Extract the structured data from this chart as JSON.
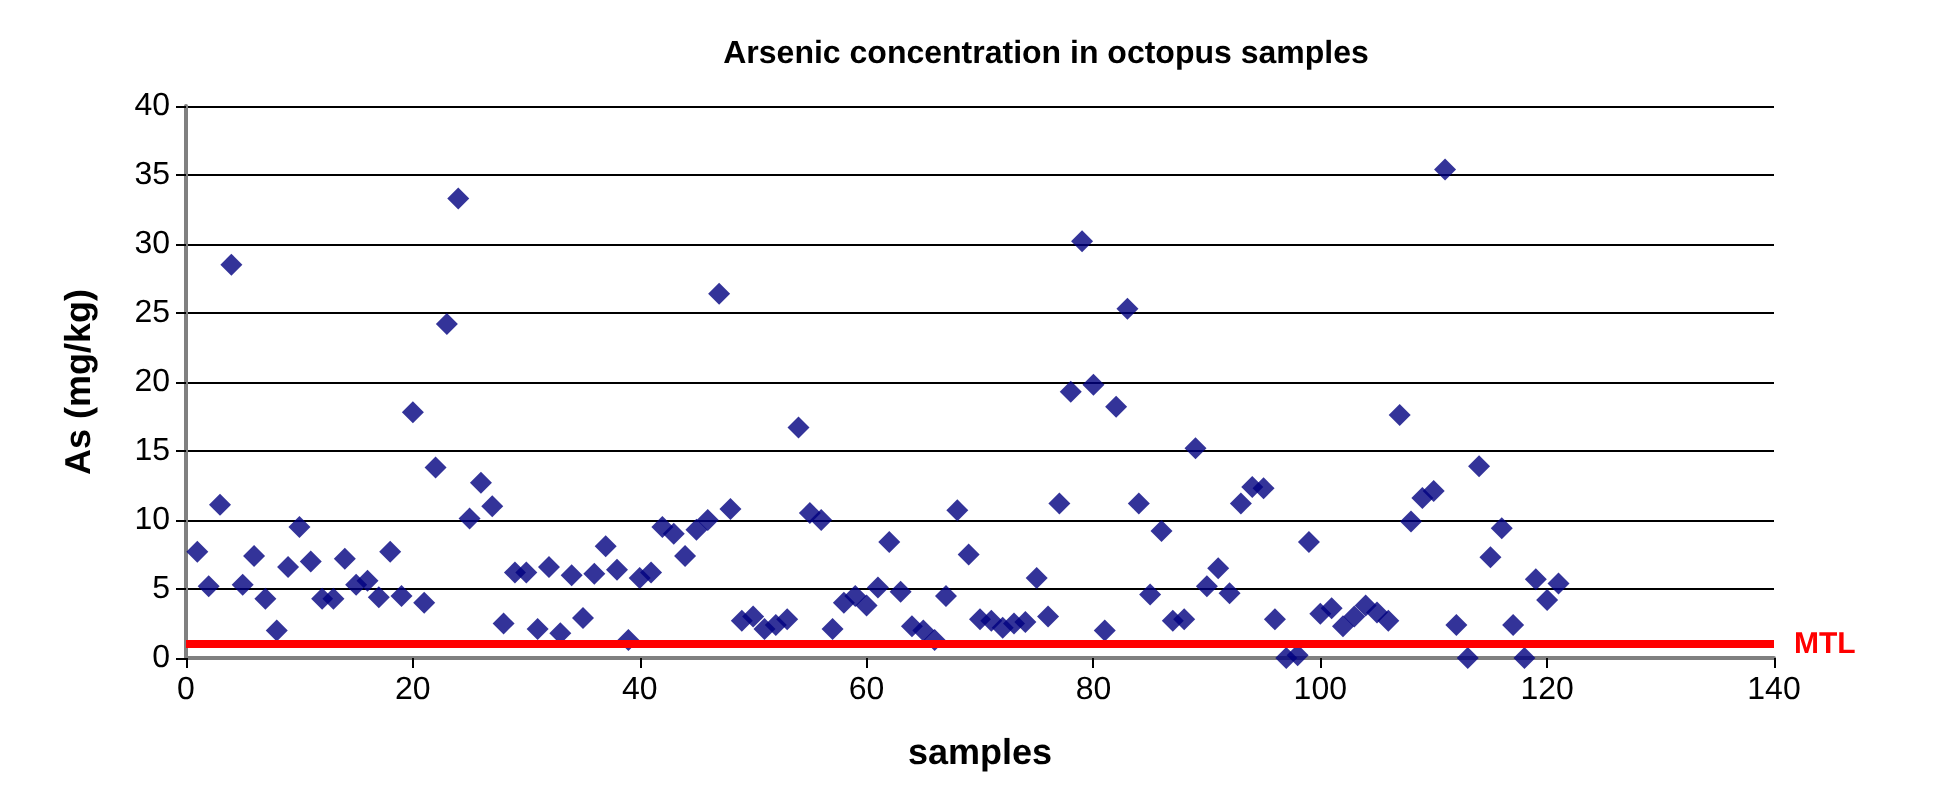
{
  "chart_data": {
    "type": "scatter",
    "title": "Arsenic concentration in octopus samples",
    "xlabel": "samples",
    "ylabel": "As (mg/kg)",
    "x": [
      1,
      2,
      3,
      4,
      5,
      6,
      7,
      8,
      9,
      10,
      11,
      12,
      13,
      14,
      15,
      16,
      17,
      18,
      19,
      20,
      21,
      22,
      23,
      24,
      25,
      26,
      27,
      28,
      29,
      30,
      31,
      32,
      33,
      34,
      35,
      36,
      37,
      38,
      39,
      40,
      41,
      42,
      43,
      44,
      45,
      46,
      47,
      48,
      49,
      50,
      51,
      52,
      53,
      54,
      55,
      56,
      57,
      58,
      59,
      60,
      61,
      62,
      63,
      64,
      65,
      66,
      67,
      68,
      69,
      70,
      71,
      72,
      73,
      74,
      75,
      76,
      77,
      78,
      79,
      80,
      81,
      82,
      83,
      84,
      85,
      86,
      87,
      88,
      89,
      90,
      91,
      92,
      93,
      94,
      95,
      96,
      97,
      98,
      99,
      100,
      101,
      102,
      103,
      104,
      105,
      106,
      107,
      108,
      109,
      110,
      111,
      112,
      113,
      114,
      115,
      116,
      117,
      118,
      119,
      120,
      121
    ],
    "series": [
      {
        "color": "#000080",
        "values": [
          7.7,
          5.2,
          11.1,
          28.5,
          5.3,
          7.4,
          4.3,
          2.0,
          6.6,
          9.5,
          7.0,
          4.3,
          4.3,
          7.2,
          5.3,
          5.6,
          4.4,
          7.7,
          4.5,
          17.8,
          4.0,
          13.8,
          24.2,
          33.3,
          10.1,
          12.7,
          11.0,
          2.5,
          6.2,
          6.2,
          2.1,
          6.6,
          1.8,
          6.0,
          2.9,
          6.1,
          8.1,
          6.4,
          1.3,
          5.8,
          6.2,
          9.5,
          9.0,
          7.4,
          9.3,
          10.0,
          26.4,
          10.8,
          2.7,
          3.0,
          2.1,
          2.4,
          2.8,
          16.7,
          10.5,
          10.0,
          2.1,
          4.0,
          4.5,
          3.8,
          5.1,
          8.4,
          4.8,
          2.3,
          2.0,
          1.3,
          4.5,
          10.7,
          7.5,
          2.8,
          2.7,
          2.2,
          2.5,
          2.6,
          5.8,
          3.0,
          11.2,
          19.3,
          30.2,
          19.8,
          2.0,
          18.2,
          25.3,
          11.2,
          4.6,
          9.2,
          2.7,
          2.8,
          15.2,
          5.2,
          6.5,
          4.7,
          11.2,
          12.4,
          12.3,
          2.8,
          0,
          0.2,
          8.4,
          3.2,
          3.6,
          2.3,
          3.0,
          3.8,
          3.3,
          2.7,
          17.6,
          9.9,
          11.6,
          12.1,
          35.4,
          2.4,
          0,
          13.9,
          7.3,
          9.4,
          2.4,
          0,
          5.7,
          4.2,
          5.4
        ]
      }
    ],
    "xlim": [
      0,
      140
    ],
    "xticks": [
      0,
      20,
      40,
      60,
      80,
      100,
      120,
      140
    ],
    "ylim": [
      0,
      40
    ],
    "yticks": [
      0,
      5,
      10,
      15,
      20,
      25,
      30,
      35,
      40
    ],
    "grid": "y",
    "marker": "diamond",
    "ref_lines": [
      {
        "axis": "y",
        "value": 1,
        "label": "MTL",
        "color": "#ff0000"
      }
    ]
  }
}
